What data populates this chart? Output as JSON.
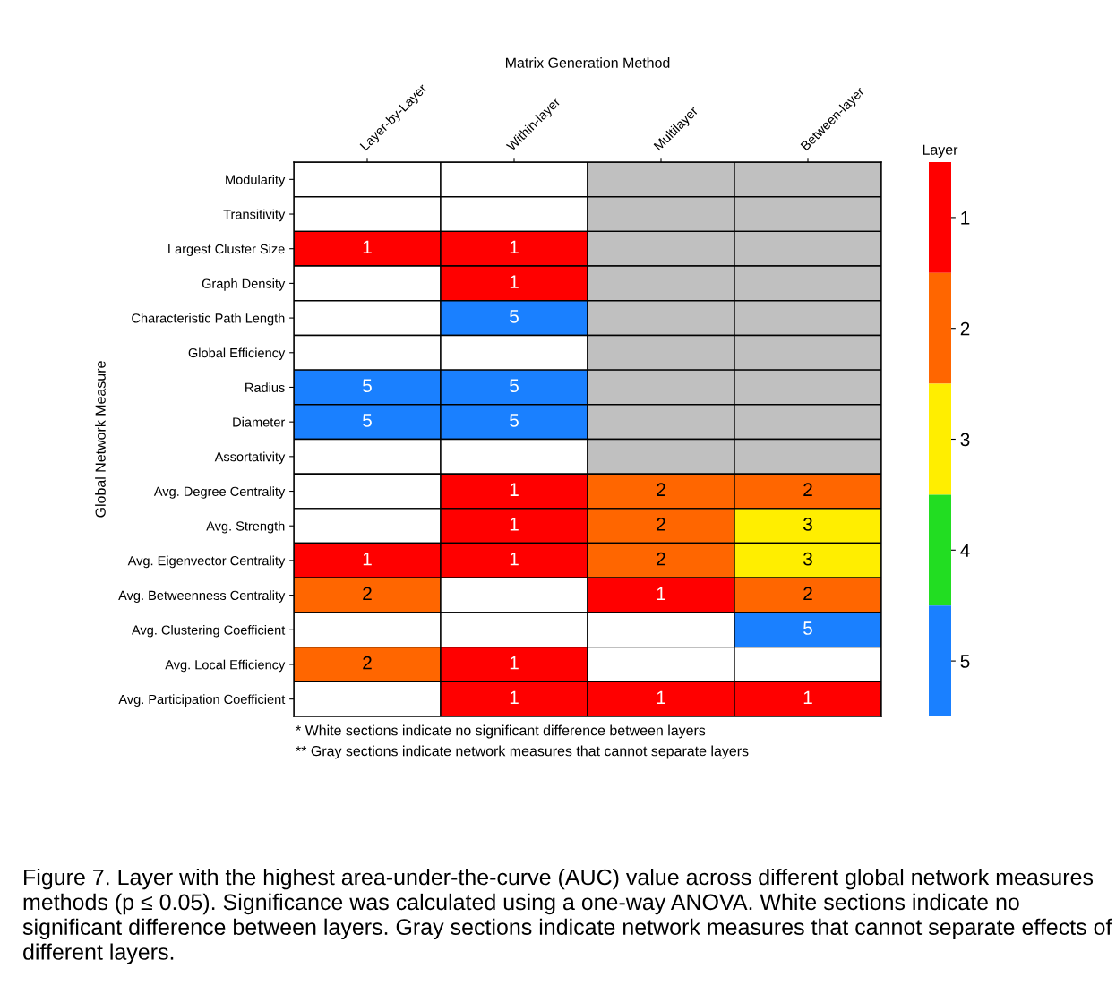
{
  "chart_data": {
    "type": "heatmap",
    "xlabel": "Matrix Generation Method",
    "ylabel": "Global Network Measure",
    "clabel": "Layer",
    "clim": [
      5.5,
      0.5
    ],
    "cticks": [
      1,
      2,
      3,
      4,
      5
    ],
    "categories": [
      "Layer-by-Layer",
      "Within-layer",
      "Multilayer",
      "Between-layer"
    ],
    "y_categories": [
      "Modularity",
      "Transitivity",
      "Largest Cluster Size",
      "Graph Density",
      "Characteristic Path Length",
      "Global Efficiency",
      "Radius",
      "Diameter",
      "Assortativity",
      "Avg. Degree Centrality",
      "Avg. Strength",
      "Avg. Eigenvector Centrality",
      "Avg. Betweenness Centrality",
      "Avg. Clustering Coefficient",
      "Avg. Local Efficiency",
      "Avg. Participation Coefficient"
    ],
    "cells": [
      [
        null,
        null,
        null,
        null
      ],
      [
        null,
        null,
        null,
        null
      ],
      [
        1,
        1,
        null,
        null
      ],
      [
        null,
        1,
        null,
        null
      ],
      [
        null,
        5,
        null,
        null
      ],
      [
        null,
        null,
        null,
        null
      ],
      [
        5,
        5,
        null,
        null
      ],
      [
        5,
        5,
        null,
        null
      ],
      [
        null,
        null,
        null,
        null
      ],
      [
        null,
        1,
        2,
        2
      ],
      [
        null,
        1,
        2,
        3
      ],
      [
        1,
        1,
        2,
        3
      ],
      [
        2,
        null,
        1,
        2
      ],
      [
        null,
        null,
        null,
        5
      ],
      [
        2,
        1,
        null,
        null
      ],
      [
        null,
        1,
        1,
        1
      ]
    ],
    "colors": [
      [
        "#ffffff",
        "#ffffff",
        "#c0c0c0",
        "#c0c0c0"
      ],
      [
        "#ffffff",
        "#ffffff",
        "#c0c0c0",
        "#c0c0c0"
      ],
      [
        "#ff0000",
        "#ff0000",
        "#c0c0c0",
        "#c0c0c0"
      ],
      [
        "#ffffff",
        "#ff0000",
        "#c0c0c0",
        "#c0c0c0"
      ],
      [
        "#ffffff",
        "#1a80ff",
        "#c0c0c0",
        "#c0c0c0"
      ],
      [
        "#ffffff",
        "#ffffff",
        "#c0c0c0",
        "#c0c0c0"
      ],
      [
        "#1a80ff",
        "#1a80ff",
        "#c0c0c0",
        "#c0c0c0"
      ],
      [
        "#1a80ff",
        "#1a80ff",
        "#c0c0c0",
        "#c0c0c0"
      ],
      [
        "#ffffff",
        "#ffffff",
        "#c0c0c0",
        "#c0c0c0"
      ],
      [
        "#ffffff",
        "#ff0000",
        "#ff6600",
        "#ff6600"
      ],
      [
        "#ffffff",
        "#ff0000",
        "#ff6600",
        "#ffee00"
      ],
      [
        "#ff0000",
        "#ff0000",
        "#ff6600",
        "#ffee00"
      ],
      [
        "#ff6600",
        "#ffffff",
        "#ff0000",
        "#ff6600"
      ],
      [
        "#ffffff",
        "#ffffff",
        "#ffffff",
        "#1a80ff"
      ],
      [
        "#ff6600",
        "#ff0000",
        "#ffffff",
        "#ffffff"
      ],
      [
        "#ffffff",
        "#ff0000",
        "#ff0000",
        "#ff0000"
      ]
    ],
    "data_labels": true,
    "annotations": [
      "* White sections indicate no significant difference between layers",
      "** Gray sections indicate network measures that cannot separate layers",
      "Figure 7. Layer with the highest area-under-the-curve (AUC) value across different global network measures methods (p ≤ 0.05). Significance was calculated using a one-way ANOVA. White sections indicate no significant difference between layers. Gray sections indicate network measures that cannot separate effects of different layers."
    ]
  }
}
